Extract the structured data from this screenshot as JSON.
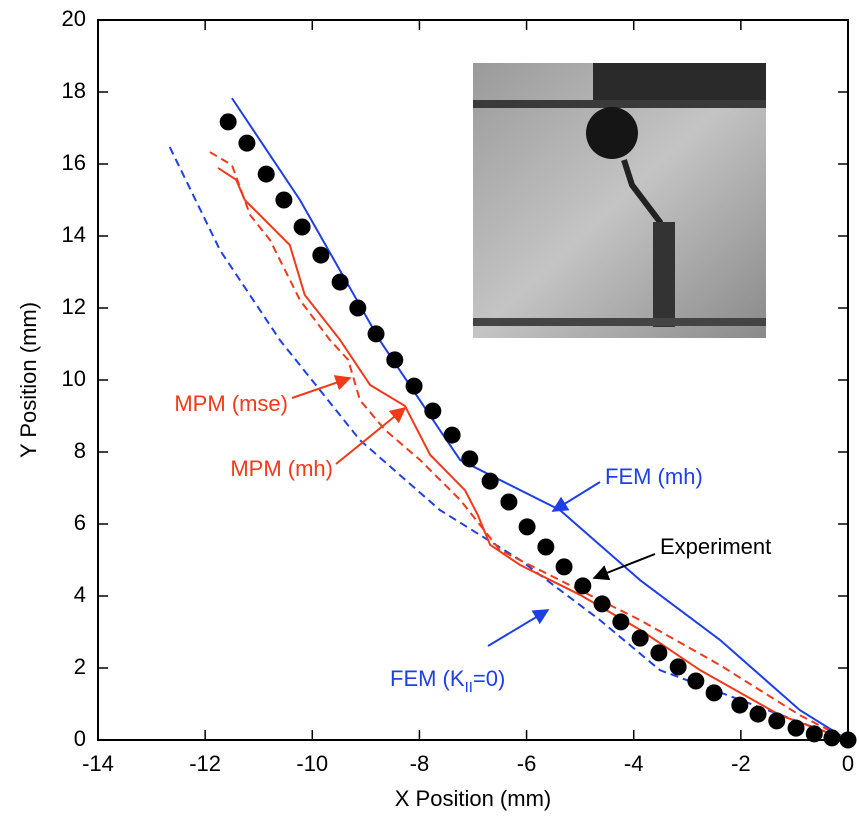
{
  "chart_data": {
    "type": "line",
    "x_label": "X Position (mm)",
    "y_label": "Y Position (mm)",
    "xlim": [
      -14,
      0
    ],
    "ylim": [
      0,
      20
    ],
    "xticks": [
      -14,
      -12,
      -10,
      -8,
      -6,
      -4,
      -2,
      0
    ],
    "yticks": [
      0,
      2,
      4,
      6,
      8,
      10,
      12,
      14,
      16,
      18,
      20
    ],
    "grid": false,
    "series": [
      {
        "style": "marker",
        "color": "#000000",
        "x": [
          -11.57,
          -11.22,
          -10.86,
          -10.53,
          -10.19,
          -9.84,
          -9.48,
          -9.15,
          -8.81,
          -8.46,
          -8.1,
          -7.75,
          -7.39,
          -7.06,
          -6.68,
          -6.33,
          -5.99,
          -5.64,
          -5.3,
          -4.95,
          -4.59,
          -4.24,
          -3.88,
          -3.53,
          -3.17,
          -2.84,
          -2.5,
          -2.02,
          -1.68,
          -1.33,
          -0.97,
          -0.63,
          -0.3,
          0
        ],
        "values": [
          17.17,
          16.58,
          15.72,
          15.0,
          14.25,
          13.47,
          12.72,
          12.0,
          11.28,
          10.56,
          9.83,
          9.14,
          8.47,
          7.81,
          7.19,
          6.61,
          5.92,
          5.36,
          4.81,
          4.28,
          3.78,
          3.28,
          2.83,
          2.42,
          2.03,
          1.64,
          1.31,
          0.97,
          0.72,
          0.53,
          0.33,
          0.17,
          0.06,
          0
        ]
      },
      {
        "style": "solid",
        "color": "#1f3fe6",
        "x": [
          -11.5,
          -10.23,
          -8.74,
          -7.62,
          -7.24,
          -5.38,
          -3.88,
          -2.39,
          -0.9,
          0
        ],
        "values": [
          17.83,
          15.0,
          11.1,
          8.61,
          7.78,
          6.39,
          4.44,
          2.78,
          0.83,
          0
        ]
      },
      {
        "style": "dashed",
        "color": "#1f3fe6",
        "x": [
          -12.66,
          -11.72,
          -10.6,
          -9.11,
          -7.62,
          -6.12,
          -4.63,
          -3.51,
          -1.5,
          0
        ],
        "values": [
          16.47,
          13.6,
          11.1,
          8.33,
          6.39,
          5.0,
          3.33,
          1.94,
          0.83,
          0
        ]
      },
      {
        "style": "solid",
        "color": "#f03a1a",
        "x": [
          -11.76,
          -11.42,
          -11.26,
          -10.42,
          -10.14,
          -9.48,
          -8.92,
          -8.27,
          -7.8,
          -7.15,
          -6.91,
          -6.68,
          -6.12,
          -5.0,
          -3.88,
          -2.76,
          -1.27,
          0
        ],
        "values": [
          15.89,
          15.56,
          15.0,
          13.75,
          12.36,
          11.11,
          9.86,
          9.28,
          7.92,
          6.94,
          6.25,
          5.42,
          4.86,
          4.03,
          3.06,
          1.94,
          0.69,
          0
        ]
      },
      {
        "style": "dashed",
        "color": "#f03a1a",
        "x": [
          -11.91,
          -11.5,
          -11.16,
          -10.79,
          -10.23,
          -9.67,
          -9.33,
          -9.11,
          -8.64,
          -7.99,
          -7.24,
          -6.5,
          -5.38,
          -3.88,
          -2.39,
          -0.9,
          0
        ],
        "values": [
          16.33,
          15.97,
          14.58,
          13.89,
          12.22,
          11.11,
          10.56,
          9.44,
          8.61,
          7.78,
          6.67,
          5.28,
          4.44,
          3.33,
          2.08,
          0.69,
          0
        ]
      }
    ],
    "annotations": [
      {
        "text": "MPM (mse)",
        "color": "#f03a1a"
      },
      {
        "text": "MPM (mh)",
        "color": "#f03a1a"
      },
      {
        "text": "FEM (mh)",
        "color": "#1f3fe6"
      },
      {
        "text": "Experiment",
        "color": "#000000"
      },
      {
        "text": [
          "FEM (K",
          "II",
          "=0)"
        ],
        "color": "#1f3fe6"
      }
    ]
  }
}
